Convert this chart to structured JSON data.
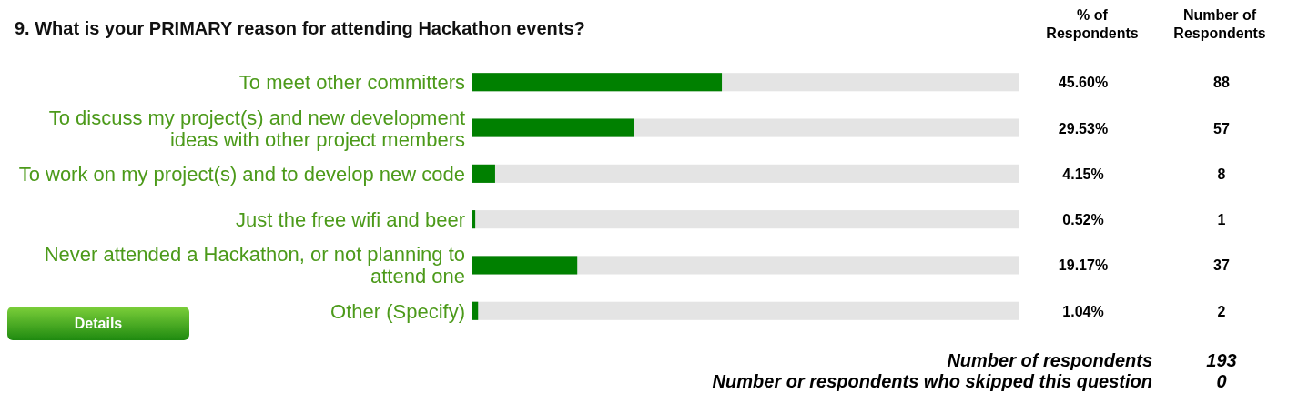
{
  "chart_data": {
    "type": "bar",
    "orientation": "horizontal",
    "title": "9. What is your PRIMARY reason for attending Hackathon events?",
    "categories": [
      "To meet other committers",
      "To discuss my project(s) and new development ideas with other project members",
      "To work on my project(s) and to develop new code",
      "Just the free wifi and beer",
      "Never attended a Hackathon, or not planning to attend one",
      "Other (Specify)"
    ],
    "values": [
      45.6,
      29.53,
      4.15,
      0.52,
      19.17,
      1.04
    ],
    "value_labels": [
      "45.60%",
      "29.53%",
      "4.15%",
      "0.52%",
      "19.17%",
      "1.04%"
    ],
    "color": "#008000",
    "xlim": [
      0,
      100
    ],
    "tick_labels": "y",
    "annotations": [
      "% of Respondents",
      "Number of Respondents",
      "Number of respondents",
      "193",
      "Number or respondents who skipped this question",
      "0",
      "Details",
      "88",
      "57",
      "8",
      "1",
      "37",
      "2"
    ]
  }
}
